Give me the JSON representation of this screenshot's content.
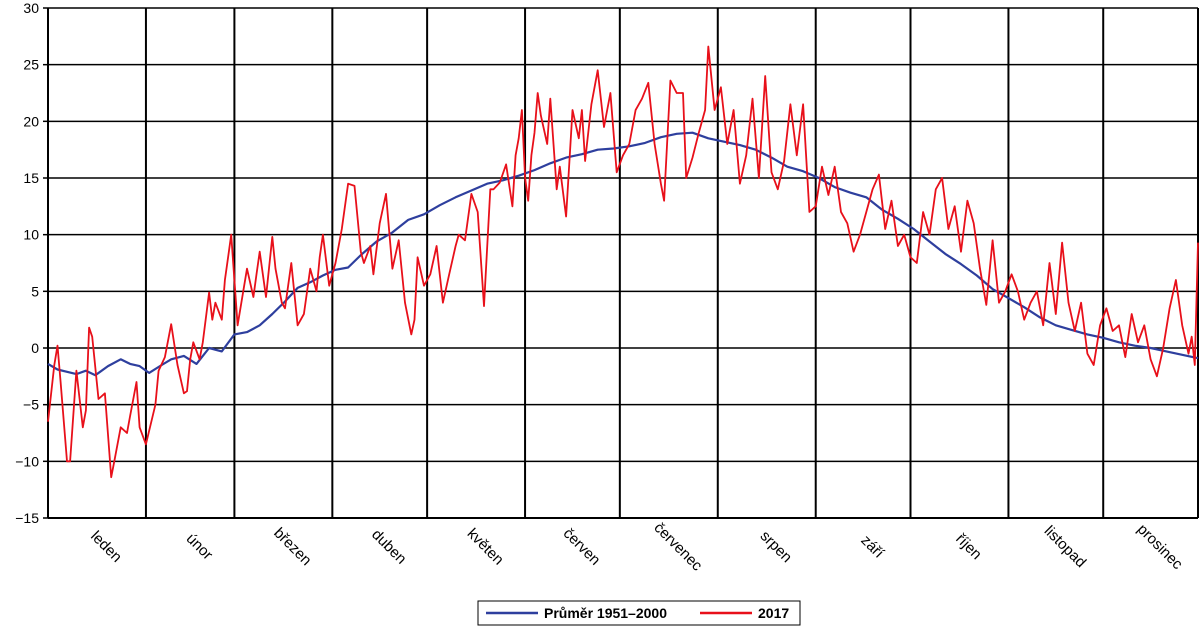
{
  "chart_data": {
    "type": "line",
    "ylim": [
      -15,
      30
    ],
    "yticks": [
      -15,
      -10,
      -5,
      0,
      5,
      10,
      15,
      20,
      25,
      30
    ],
    "xlim": [
      1,
      365
    ],
    "month_labels": [
      "leden",
      "únor",
      "březen",
      "duben",
      "květen",
      "červen",
      "červenec",
      "srpen",
      "září",
      "říjen",
      "listopad",
      "prosinec"
    ],
    "month_boundaries_day": [
      1,
      32,
      60,
      91,
      121,
      152,
      182,
      213,
      244,
      274,
      305,
      335,
      365
    ],
    "grid": true,
    "legend_placement": "bottom-center",
    "series": [
      {
        "name": "Průměr 1951–2000",
        "color": "#2e3f9e",
        "x": [
          1,
          4,
          7,
          10,
          13,
          16,
          20,
          24,
          27,
          30,
          33,
          37,
          40,
          44,
          48,
          52,
          56,
          60,
          64,
          68,
          72,
          76,
          80,
          84,
          88,
          92,
          96,
          100,
          105,
          110,
          115,
          120,
          125,
          130,
          135,
          140,
          145,
          150,
          155,
          160,
          165,
          170,
          175,
          180,
          185,
          190,
          195,
          200,
          205,
          210,
          215,
          220,
          225,
          230,
          235,
          240,
          245,
          250,
          255,
          260,
          265,
          270,
          275,
          280,
          285,
          290,
          295,
          300,
          305,
          310,
          315,
          320,
          325,
          330,
          335,
          340,
          345,
          350,
          355,
          360,
          365
        ],
        "y": [
          -1.4,
          -1.9,
          -2.1,
          -2.3,
          -2.0,
          -2.4,
          -1.6,
          -1.0,
          -1.4,
          -1.6,
          -2.2,
          -1.5,
          -1.0,
          -0.7,
          -1.4,
          0.0,
          -0.3,
          1.2,
          1.4,
          2.0,
          3.0,
          4.1,
          5.3,
          5.8,
          6.4,
          6.9,
          7.1,
          8.2,
          9.4,
          10.2,
          11.3,
          11.8,
          12.6,
          13.3,
          13.9,
          14.5,
          14.8,
          15.2,
          15.7,
          16.3,
          16.8,
          17.1,
          17.5,
          17.6,
          17.8,
          18.1,
          18.6,
          18.9,
          19.0,
          18.5,
          18.2,
          17.9,
          17.5,
          16.8,
          16.0,
          15.6,
          15.0,
          14.2,
          13.7,
          13.3,
          12.2,
          11.4,
          10.5,
          9.4,
          8.3,
          7.4,
          6.4,
          5.2,
          4.4,
          3.6,
          2.7,
          2.0,
          1.6,
          1.2,
          0.9,
          0.5,
          0.2,
          0.0,
          -0.3,
          -0.6,
          -0.9
        ]
      },
      {
        "name": "2017",
        "color": "#e8101a",
        "x": [
          1,
          3,
          4,
          5,
          7,
          8,
          10,
          12,
          13,
          14,
          15,
          17,
          19,
          21,
          22,
          24,
          26,
          27,
          29,
          30,
          32,
          35,
          36,
          38,
          40,
          42,
          44,
          45,
          46,
          47,
          49,
          50,
          52,
          53,
          54,
          56,
          57,
          58,
          59,
          61,
          64,
          66,
          67,
          68,
          70,
          72,
          73,
          75,
          76,
          78,
          80,
          82,
          83,
          84,
          86,
          87,
          88,
          90,
          92,
          94,
          96,
          98,
          100,
          101,
          103,
          104,
          106,
          108,
          110,
          112,
          114,
          116,
          117,
          118,
          120,
          122,
          124,
          126,
          128,
          130,
          131,
          133,
          135,
          137,
          139,
          141,
          142,
          144,
          146,
          148,
          149,
          150,
          151,
          152,
          153,
          154,
          155,
          156,
          157,
          159,
          160,
          162,
          163,
          165,
          167,
          169,
          170,
          171,
          173,
          175,
          177,
          179,
          181,
          183,
          185,
          187,
          189,
          191,
          193,
          195,
          196,
          198,
          200,
          202,
          203,
          205,
          207,
          209,
          210,
          212,
          214,
          216,
          218,
          220,
          222,
          224,
          226,
          228,
          230,
          232,
          234,
          236,
          238,
          240,
          242,
          244,
          246,
          248,
          250,
          252,
          254,
          256,
          258,
          260,
          262,
          264,
          266,
          268,
          270,
          272,
          274,
          276,
          278,
          280,
          282,
          284,
          286,
          288,
          290,
          292,
          294,
          296,
          298,
          300,
          302,
          304,
          306,
          308,
          310,
          312,
          314,
          316,
          318,
          320,
          322,
          324,
          326,
          328,
          330,
          332,
          334,
          336,
          338,
          340,
          342,
          344,
          346,
          348,
          350,
          352,
          354,
          356,
          358,
          360,
          362,
          363,
          364,
          365
        ],
        "y": [
          -6.5,
          -1.5,
          0.2,
          -3.0,
          -10.0,
          -10.0,
          -2.0,
          -7.0,
          -5.5,
          1.8,
          1.0,
          -4.5,
          -4.0,
          -11.4,
          -10.0,
          -7.0,
          -7.5,
          -6.0,
          -3.0,
          -7.0,
          -8.5,
          -5.0,
          -2.0,
          -0.8,
          2.1,
          -1.5,
          -4.0,
          -3.8,
          -1.0,
          0.5,
          -1.0,
          0.5,
          4.9,
          2.5,
          4.0,
          2.5,
          6.0,
          8.0,
          10.0,
          2.0,
          7.0,
          4.5,
          6.5,
          8.5,
          4.5,
          9.8,
          7.0,
          4.0,
          3.5,
          7.5,
          2.0,
          3.0,
          5.0,
          7.0,
          5.0,
          8.0,
          10.0,
          5.5,
          7.5,
          10.5,
          14.5,
          14.3,
          8.5,
          7.5,
          9.0,
          6.5,
          11.0,
          13.6,
          7.0,
          9.5,
          4.0,
          1.2,
          2.5,
          8.0,
          5.5,
          6.5,
          9.0,
          4.0,
          6.5,
          9.0,
          10.0,
          9.5,
          13.6,
          12.0,
          3.7,
          14.0,
          14.0,
          14.6,
          16.2,
          12.5,
          17.0,
          18.5,
          21.0,
          15.0,
          13.0,
          17.0,
          19.0,
          22.5,
          20.5,
          18.0,
          22.0,
          14.0,
          16.0,
          11.6,
          21.0,
          18.5,
          21.0,
          16.5,
          21.5,
          24.5,
          19.5,
          22.5,
          15.5,
          17.0,
          18.0,
          21.0,
          22.0,
          23.4,
          18.0,
          14.5,
          13.0,
          23.6,
          22.5,
          22.5,
          15.0,
          16.8,
          19.0,
          21.0,
          26.6,
          21.0,
          23.0,
          18.0,
          21.0,
          14.5,
          17.0,
          22.0,
          15.0,
          24.0,
          15.5,
          14.0,
          16.5,
          21.5,
          17.0,
          21.5,
          12.0,
          12.5,
          16.0,
          13.5,
          16.0,
          12.0,
          11.0,
          8.5,
          10.0,
          12.0,
          14.0,
          15.3,
          10.5,
          13.0,
          9.0,
          10.0,
          8.0,
          7.5,
          12.0,
          10.0,
          14.0,
          15.0,
          10.5,
          12.5,
          8.5,
          13.0,
          11.0,
          7.0,
          3.8,
          9.5,
          4.0,
          5.0,
          6.5,
          5.0,
          2.5,
          4.0,
          5.0,
          2.0,
          7.5,
          3.0,
          9.3,
          4.0,
          1.5,
          4.0,
          -0.5,
          -1.5,
          2.0,
          3.5,
          1.5,
          2.0,
          -0.8,
          3.0,
          0.5,
          2.0,
          -1.0,
          -2.5,
          0.0,
          3.5,
          6.0,
          2.0,
          -0.5,
          1.0,
          -1.5,
          9.3
        ]
      }
    ]
  },
  "legend": {
    "items": [
      {
        "label": "Průměr 1951–2000",
        "color": "#2e3f9e"
      },
      {
        "label": "2017",
        "color": "#e8101a"
      }
    ]
  }
}
